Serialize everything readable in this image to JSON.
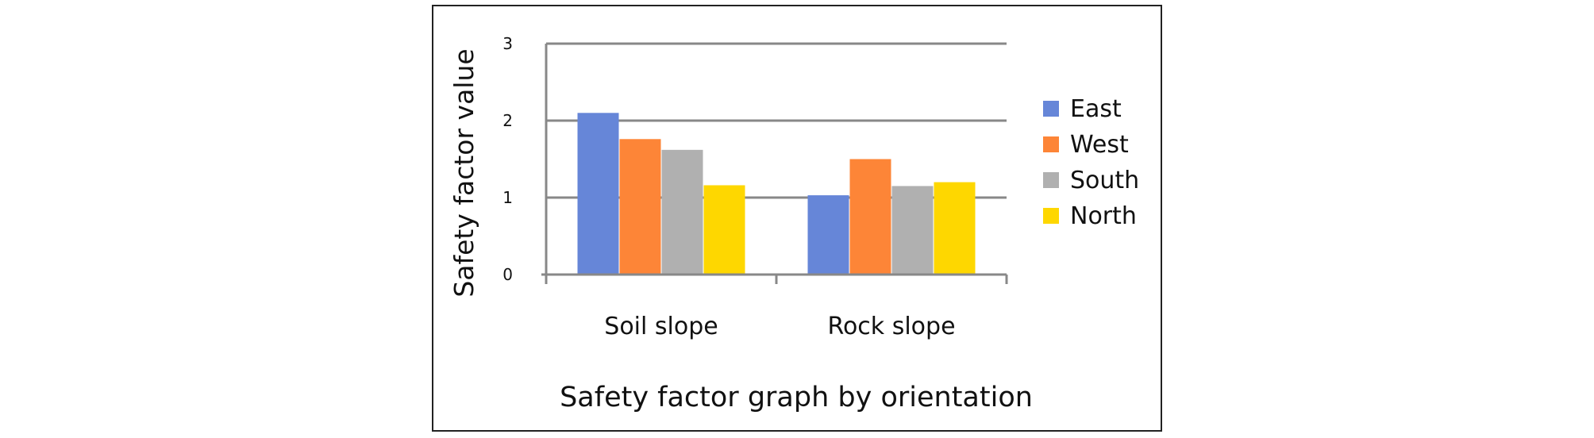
{
  "chart_data": {
    "type": "bar",
    "title": "Safety factor graph by orientation",
    "xlabel": "",
    "ylabel": "Safety factor value",
    "categories": [
      "Soil slope",
      "Rock slope"
    ],
    "series": [
      {
        "name": "East",
        "color": "#6686d8",
        "values": [
          2.1,
          1.03
        ]
      },
      {
        "name": "West",
        "color": "#fd8537",
        "values": [
          1.76,
          1.5
        ]
      },
      {
        "name": "South",
        "color": "#b0b0b0",
        "values": [
          1.62,
          1.15
        ]
      },
      {
        "name": "North",
        "color": "#fed700",
        "values": [
          1.16,
          1.2
        ]
      }
    ],
    "ylim": [
      0,
      3
    ],
    "yticks": [
      0,
      1,
      2,
      3
    ],
    "ytick_labels": [
      "0",
      "1",
      "2",
      "3"
    ],
    "grid": true,
    "legend_position": "right",
    "colors": {
      "axis": "#888888",
      "grid": "#888888",
      "text": "#111111",
      "frame": "#222222"
    }
  }
}
